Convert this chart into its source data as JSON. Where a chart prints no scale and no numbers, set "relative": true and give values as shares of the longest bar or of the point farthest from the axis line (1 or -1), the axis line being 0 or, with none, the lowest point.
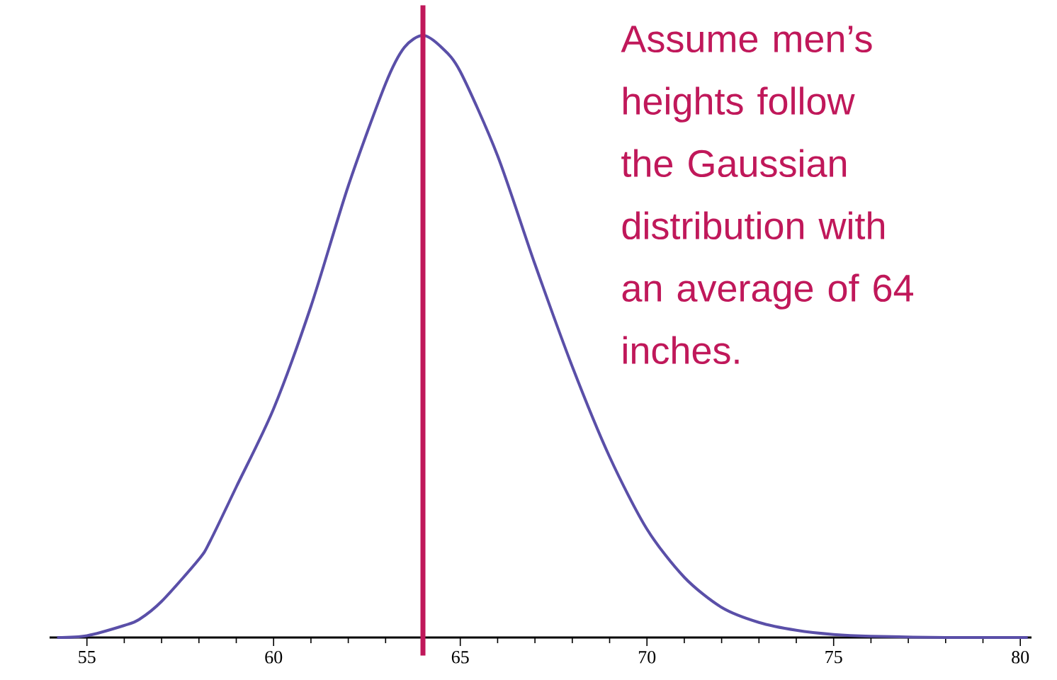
{
  "chart_data": {
    "type": "line",
    "relative": true,
    "x": [
      54.2,
      55,
      56,
      56.4,
      57,
      58,
      58.3,
      59,
      60,
      61,
      62,
      63,
      63.5,
      64,
      64.5,
      65,
      66,
      67,
      68,
      69,
      70,
      71,
      72,
      73,
      74,
      75,
      76,
      78,
      80.2
    ],
    "series": [
      {
        "color": "#5a4fa8",
        "values": [
          0,
          0.003,
          0.02,
          0.03,
          0.06,
          0.13,
          0.16,
          0.25,
          0.38,
          0.55,
          0.75,
          0.92,
          0.98,
          1,
          0.98,
          0.94,
          0.8,
          0.62,
          0.45,
          0.3,
          0.18,
          0.1,
          0.05,
          0.025,
          0.012,
          0.005,
          0.002,
          0,
          0
        ]
      }
    ],
    "xlim": [
      54,
      80.3
    ],
    "xticks": [
      55,
      60,
      65,
      70,
      75,
      80
    ],
    "ref_lines": [
      {
        "axis": "x",
        "value": 64,
        "color": "#c0185a"
      }
    ],
    "annotations": [
      "Assume men’s heights follow the Gaussian distribution with an average of 64 inches."
    ]
  }
}
